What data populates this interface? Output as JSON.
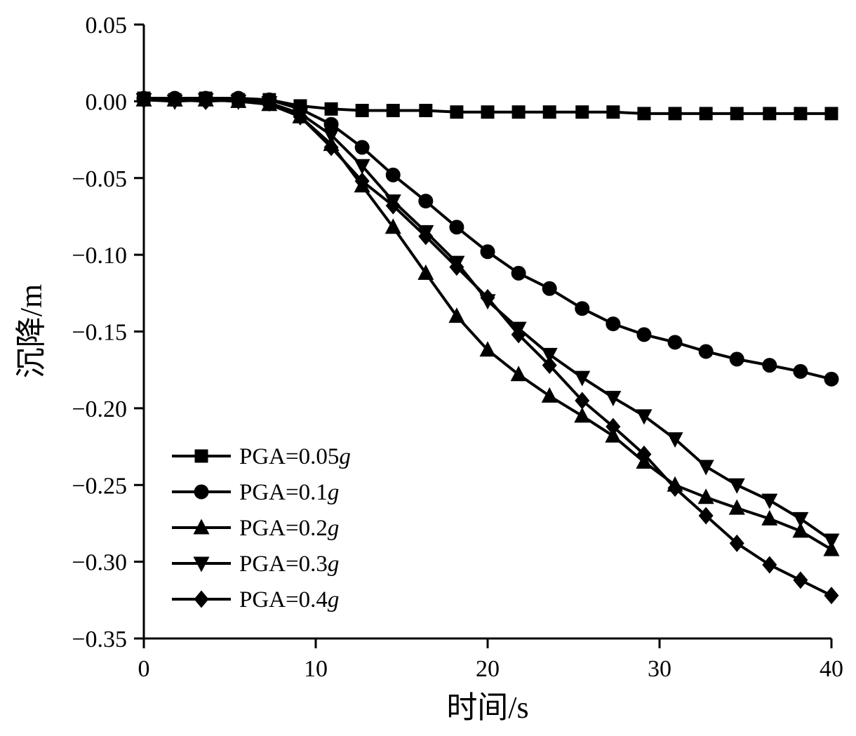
{
  "figure": {
    "background": "#ffffff",
    "line_color": "#000000"
  },
  "chart_data": {
    "type": "line",
    "title": "",
    "xlabel": "时间/s",
    "ylabel": "沉降/m",
    "xlim": [
      0,
      40
    ],
    "ylim": [
      -0.35,
      0.05
    ],
    "xticks": [
      0,
      10,
      20,
      30,
      40
    ],
    "yticks": [
      0.05,
      0.0,
      -0.05,
      -0.1,
      -0.15,
      -0.2,
      -0.25,
      -0.3,
      -0.35
    ],
    "grid": false,
    "legend_position": "lower-left",
    "x": [
      0,
      1.8,
      3.6,
      5.5,
      7.3,
      9.1,
      10.9,
      12.7,
      14.5,
      16.4,
      18.2,
      20,
      21.8,
      23.6,
      25.5,
      27.3,
      29.1,
      30.9,
      32.7,
      34.5,
      36.4,
      38.2,
      40
    ],
    "series": [
      {
        "name": "PGA=0.05g",
        "marker": "square",
        "values": [
          0.002,
          0.001,
          0.002,
          0.001,
          0.001,
          -0.003,
          -0.005,
          -0.006,
          -0.006,
          -0.006,
          -0.007,
          -0.007,
          -0.007,
          -0.007,
          -0.007,
          -0.007,
          -0.008,
          -0.008,
          -0.008,
          -0.008,
          -0.008,
          -0.008,
          -0.008
        ]
      },
      {
        "name": "PGA=0.1g",
        "marker": "circle",
        "values": [
          0.002,
          0.002,
          0.002,
          0.002,
          0.001,
          -0.005,
          -0.015,
          -0.03,
          -0.048,
          -0.065,
          -0.082,
          -0.098,
          -0.112,
          -0.122,
          -0.135,
          -0.145,
          -0.152,
          -0.157,
          -0.163,
          -0.168,
          -0.172,
          -0.176,
          -0.181
        ]
      },
      {
        "name": "PGA=0.2g",
        "marker": "triangle-up",
        "values": [
          0.001,
          0.001,
          0.001,
          0.0,
          -0.002,
          -0.01,
          -0.028,
          -0.055,
          -0.082,
          -0.112,
          -0.14,
          -0.162,
          -0.178,
          -0.192,
          -0.205,
          -0.218,
          -0.235,
          -0.25,
          -0.258,
          -0.265,
          -0.272,
          -0.28,
          -0.292
        ]
      },
      {
        "name": "PGA=0.3g",
        "marker": "triangle-down",
        "values": [
          0.001,
          0.0,
          0.001,
          0.0,
          -0.001,
          -0.008,
          -0.022,
          -0.042,
          -0.065,
          -0.085,
          -0.105,
          -0.13,
          -0.148,
          -0.165,
          -0.18,
          -0.193,
          -0.205,
          -0.22,
          -0.238,
          -0.25,
          -0.26,
          -0.272,
          -0.286
        ]
      },
      {
        "name": "PGA=0.4g",
        "marker": "diamond",
        "values": [
          0.001,
          0.001,
          0.0,
          0.001,
          -0.001,
          -0.01,
          -0.03,
          -0.052,
          -0.068,
          -0.088,
          -0.108,
          -0.128,
          -0.152,
          -0.172,
          -0.195,
          -0.212,
          -0.23,
          -0.252,
          -0.27,
          -0.288,
          -0.302,
          -0.312,
          -0.322
        ]
      }
    ]
  }
}
